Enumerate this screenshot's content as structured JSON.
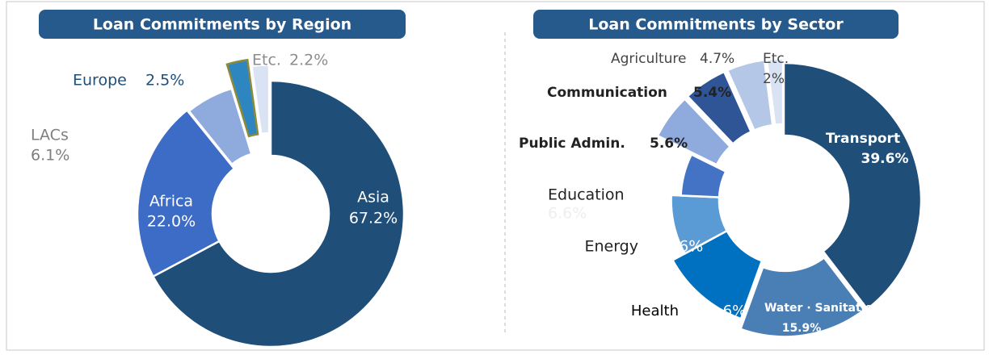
{
  "chart_data": [
    {
      "type": "pie",
      "title": "Loan Commitments by Region",
      "categories": [
        "Asia",
        "Africa",
        "LACs",
        "Europe",
        "Etc."
      ],
      "values": [
        67.2,
        22.0,
        6.1,
        2.5,
        2.2
      ],
      "value_labels": [
        "67.2%",
        "22.0%",
        "6.1%",
        "2.5%",
        "2.2%"
      ],
      "colors": [
        "#1f4e79",
        "#3d6cc7",
        "#8faadc",
        "#2e86c1",
        "#dae3f3"
      ]
    },
    {
      "type": "pie",
      "title": "Loan Commitments by Sector",
      "categories": [
        "Transport",
        "Water · Sanitation",
        "Health",
        "Energy",
        "Education",
        "Public Admin.",
        "Communication",
        "Agriculture",
        "Etc."
      ],
      "values": [
        39.6,
        15.9,
        11.6,
        8.6,
        6.6,
        5.6,
        5.4,
        4.7,
        2
      ],
      "value_labels": [
        "39.6%",
        "15.9%",
        "11.6%",
        "8.6%",
        "6.6%",
        "5.6%",
        "5.4%",
        "4.7%",
        "2%"
      ],
      "colors": [
        "#1f4e79",
        "#4a7fb5",
        "#0070c0",
        "#5b9bd5",
        "#4472c4",
        "#8faadc",
        "#2f5597",
        "#b4c7e7",
        "#dae3f3"
      ]
    }
  ]
}
